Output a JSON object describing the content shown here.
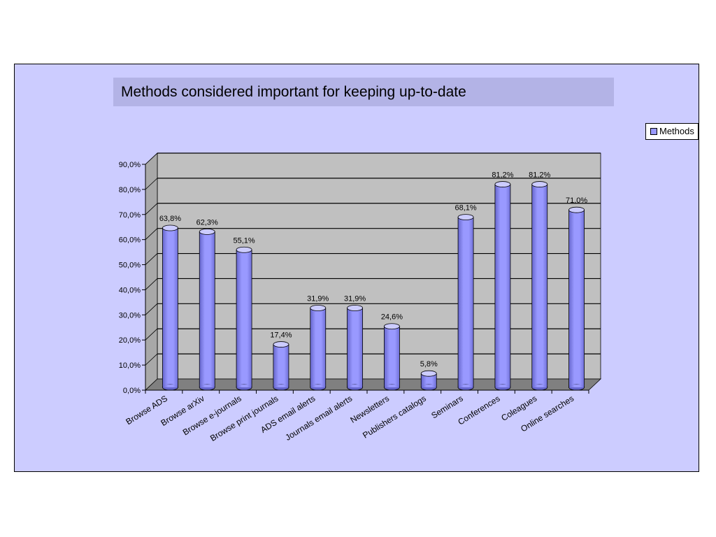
{
  "chart_data": {
    "type": "bar",
    "title": "Methods considered important  for keeping up-to-date",
    "categories": [
      "Browse ADS",
      "Browse arXiv",
      "Browse e-journals",
      "Browse print journals",
      "ADS email alerts",
      "Journals email alerts",
      "Newsletters",
      "Publishers catalogs",
      "Seminars",
      "Conferences",
      "Coleagues",
      "Online searches"
    ],
    "series": [
      {
        "name": "Methods",
        "values": [
          63.8,
          62.3,
          55.1,
          17.4,
          31.9,
          31.9,
          24.6,
          5.8,
          68.1,
          81.2,
          81.2,
          71.0
        ]
      }
    ],
    "data_labels": [
      "63,8%",
      "62,3%",
      "55,1%",
      "17,4%",
      "31,9%",
      "31,9%",
      "24,6%",
      "5,8%",
      "68,1%",
      "81,2%",
      "81,2%",
      "71,0%"
    ],
    "y_ticks": [
      "0,0%",
      "10,0%",
      "20,0%",
      "30,0%",
      "40,0%",
      "50,0%",
      "60,0%",
      "70,0%",
      "80,0%",
      "90,0%"
    ],
    "ylim": [
      0,
      90
    ],
    "grid": true,
    "legend_position": "right",
    "colors": {
      "frame_bg": "#ccccff",
      "title_bg": "#b3b3e6",
      "wall": "#c0c0c0",
      "floor": "#808080",
      "bar": "#9999ff",
      "bar_top": "#ccccff",
      "bar_dark": "#6666cc"
    }
  }
}
